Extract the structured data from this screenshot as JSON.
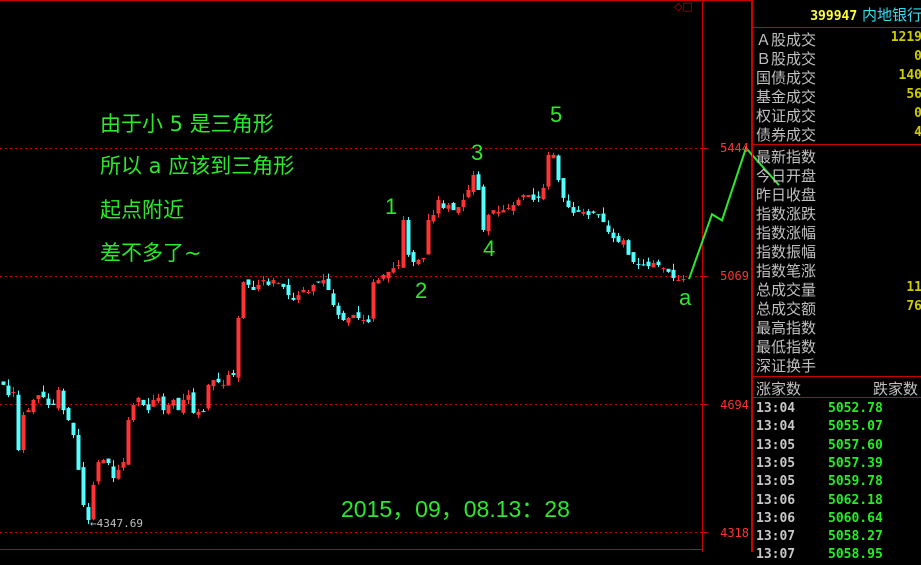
{
  "panel": {
    "code": "399947",
    "name": "内地银行",
    "stats": [
      {
        "label": "Ａ股成交",
        "value": "1219"
      },
      {
        "label": "Ｂ股成交",
        "value": "0"
      },
      {
        "label": "国债成交",
        "value": "140"
      },
      {
        "label": "基金成交",
        "value": "56"
      },
      {
        "label": "权证成交",
        "value": "0"
      },
      {
        "label": "债券成交",
        "value": "4"
      }
    ],
    "fields": [
      {
        "label": "最新指数",
        "value": ""
      },
      {
        "label": "今日开盘",
        "value": ""
      },
      {
        "label": "昨日收盘",
        "value": ""
      },
      {
        "label": "指数涨跌",
        "value": ""
      },
      {
        "label": "指数涨幅",
        "value": ""
      },
      {
        "label": "指数振幅",
        "value": ""
      },
      {
        "label": "指数笔涨",
        "value": ""
      },
      {
        "label": "总成交量",
        "value": "11"
      },
      {
        "label": "总成交额",
        "value": "76"
      },
      {
        "label": "最高指数",
        "value": ""
      },
      {
        "label": "最低指数",
        "value": ""
      },
      {
        "label": "深证换手",
        "value": ""
      }
    ],
    "breadth_header": {
      "up": "涨家数",
      "down": "跌家数"
    },
    "ticks": [
      {
        "time": "13:04",
        "price": "5052.78"
      },
      {
        "time": "13:04",
        "price": "5055.07"
      },
      {
        "time": "13:05",
        "price": "5057.60"
      },
      {
        "time": "13:05",
        "price": "5057.39"
      },
      {
        "time": "13:05",
        "price": "5059.78"
      },
      {
        "time": "13:06",
        "price": "5062.18"
      },
      {
        "time": "13:06",
        "price": "5060.64"
      },
      {
        "time": "13:07",
        "price": "5058.27"
      },
      {
        "time": "13:07",
        "price": "5058.95"
      }
    ]
  },
  "annotations": {
    "lines": [
      "由于小 5 是三角形",
      "所以 a 应该到三角形",
      "起点附近",
      "差不多了~"
    ],
    "waves": [
      "1",
      "2",
      "3",
      "4",
      "5",
      "a"
    ],
    "timestamp": "2015，09，08.13：28",
    "low_marker": "←4347.69"
  },
  "colors": {
    "up": "#ff3333",
    "down": "#55ffff",
    "grid": "#cc0000",
    "annotation": "#2ee82e"
  },
  "chart_data": {
    "type": "candlestick",
    "yticks": [
      "5444",
      "5069",
      "4694",
      "4318"
    ],
    "ylim": [
      4318,
      5444
    ],
    "low_label": 4347.69,
    "closes": [
      4750,
      4720,
      4729,
      4559,
      4662,
      4676,
      4706,
      4720,
      4714,
      4691,
      4691,
      4735,
      4676,
      4647,
      4603,
      4501,
      4398,
      4354,
      4457,
      4524,
      4530,
      4521,
      4477,
      4501,
      4524,
      4647,
      4691,
      4712,
      4691,
      4676,
      4706,
      4712,
      4676,
      4691,
      4706,
      4676,
      4706,
      4720,
      4668,
      4671,
      4671,
      4750,
      4764,
      4758,
      4750,
      4779,
      4779,
      4946,
      5051,
      5043,
      5028,
      5043,
      5057,
      5043,
      5057,
      5048,
      5037,
      5013,
      4999,
      5013,
      5028,
      5022,
      5043,
      5051,
      5057,
      5028,
      4984,
      4955,
      4940,
      4946,
      4955,
      4946,
      4940,
      4934,
      5051,
      5057,
      5072,
      5081,
      5092,
      5101,
      5233,
      5131,
      5110,
      5116,
      5122,
      5233,
      5248,
      5292,
      5268,
      5277,
      5262,
      5271,
      5292,
      5321,
      5365,
      5321,
      5204,
      5248,
      5262,
      5257,
      5262,
      5268,
      5277,
      5292,
      5306,
      5306,
      5292,
      5298,
      5327,
      5424,
      5424,
      5350,
      5298,
      5271,
      5254,
      5257,
      5257,
      5248,
      5254,
      5248,
      5227,
      5198,
      5180,
      5169,
      5174,
      5131,
      5110,
      5101,
      5101,
      5098,
      5107,
      5101,
      5092,
      5081,
      5063,
      5057,
      5060
    ],
    "projection": [
      5060,
      5250,
      5232,
      5444,
      5335
    ]
  }
}
